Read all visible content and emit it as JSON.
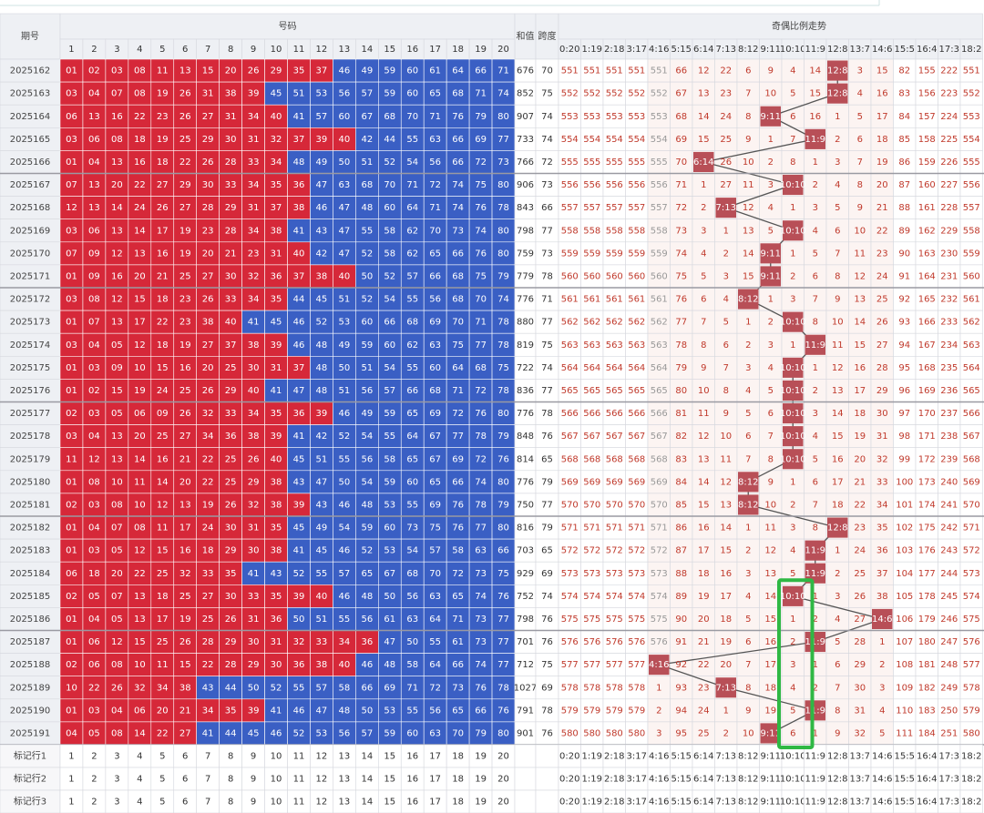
{
  "header": {
    "issue": "期号",
    "numbers": "号码",
    "sum": "和值",
    "span": "跨度",
    "trend": "奇偶比例走势",
    "number_cols": [
      1,
      2,
      3,
      4,
      5,
      6,
      7,
      8,
      9,
      10,
      11,
      12,
      13,
      14,
      15,
      16,
      17,
      18,
      19,
      20
    ],
    "ratio_cols": [
      "0:20",
      "1:19",
      "2:18",
      "3:17",
      "4:16",
      "5:15",
      "6:14",
      "7:13",
      "8:12",
      "9:11",
      "10:10",
      "11:9",
      "12:8",
      "13:7",
      "14:6",
      "15:5",
      "16:4",
      "17:3",
      "18:2"
    ]
  },
  "rows": [
    {
      "issue": "2025162",
      "numbers": [
        "01",
        "02",
        "03",
        "08",
        "11",
        "13",
        "15",
        "20",
        "26",
        "29",
        "35",
        "37",
        "46",
        "49",
        "59",
        "60",
        "61",
        "64",
        "66",
        "71"
      ],
      "sum": 676,
      "span": 70,
      "trend": [
        551,
        551,
        551,
        551,
        551,
        66,
        12,
        22,
        6,
        9,
        4,
        14,
        "12:8",
        3,
        15,
        82,
        155,
        222,
        551
      ]
    },
    {
      "issue": "2025163",
      "numbers": [
        "03",
        "04",
        "07",
        "08",
        "19",
        "26",
        "31",
        "38",
        "39",
        "45",
        "51",
        "53",
        "56",
        "57",
        "59",
        "60",
        "65",
        "68",
        "71",
        "74"
      ],
      "sum": 852,
      "span": 75,
      "trend": [
        552,
        552,
        552,
        552,
        552,
        67,
        13,
        23,
        7,
        10,
        5,
        15,
        "12:8",
        4,
        16,
        83,
        156,
        223,
        552
      ]
    },
    {
      "issue": "2025164",
      "numbers": [
        "06",
        "13",
        "16",
        "22",
        "23",
        "26",
        "27",
        "31",
        "34",
        "40",
        "41",
        "57",
        "60",
        "67",
        "68",
        "70",
        "71",
        "76",
        "79",
        "80"
      ],
      "sum": 907,
      "span": 74,
      "trend": [
        553,
        553,
        553,
        553,
        553,
        68,
        14,
        24,
        8,
        "9:11",
        6,
        16,
        1,
        5,
        17,
        84,
        157,
        224,
        553
      ]
    },
    {
      "issue": "2025165",
      "numbers": [
        "03",
        "06",
        "08",
        "18",
        "19",
        "25",
        "29",
        "30",
        "31",
        "32",
        "37",
        "39",
        "40",
        "42",
        "44",
        "55",
        "63",
        "66",
        "69",
        "77"
      ],
      "sum": 733,
      "span": 74,
      "trend": [
        554,
        554,
        554,
        554,
        554,
        69,
        15,
        25,
        9,
        1,
        7,
        "11:9",
        2,
        6,
        18,
        85,
        158,
        225,
        554
      ]
    },
    {
      "issue": "2025166",
      "numbers": [
        "01",
        "04",
        "13",
        "16",
        "18",
        "22",
        "26",
        "28",
        "33",
        "34",
        "48",
        "49",
        "50",
        "51",
        "52",
        "54",
        "56",
        "66",
        "72",
        "73"
      ],
      "sum": 766,
      "span": 72,
      "trend": [
        555,
        555,
        555,
        555,
        555,
        70,
        "6:14",
        26,
        10,
        2,
        8,
        1,
        3,
        7,
        19,
        86,
        159,
        226,
        555
      ]
    },
    {
      "issue": "2025167",
      "numbers": [
        "07",
        "13",
        "20",
        "22",
        "27",
        "29",
        "30",
        "33",
        "34",
        "35",
        "36",
        "47",
        "63",
        "68",
        "70",
        "71",
        "72",
        "74",
        "75",
        "80"
      ],
      "sum": 906,
      "span": 73,
      "trend": [
        556,
        556,
        556,
        556,
        556,
        71,
        1,
        27,
        11,
        3,
        "10:10",
        2,
        4,
        8,
        20,
        87,
        160,
        227,
        556
      ]
    },
    {
      "issue": "2025168",
      "numbers": [
        "12",
        "13",
        "14",
        "24",
        "26",
        "27",
        "28",
        "29",
        "31",
        "37",
        "38",
        "46",
        "47",
        "48",
        "60",
        "64",
        "71",
        "74",
        "76",
        "78"
      ],
      "sum": 843,
      "span": 66,
      "trend": [
        557,
        557,
        557,
        557,
        557,
        72,
        2,
        "7:13",
        12,
        4,
        1,
        3,
        5,
        9,
        21,
        88,
        161,
        228,
        557
      ]
    },
    {
      "issue": "2025169",
      "numbers": [
        "03",
        "06",
        "13",
        "14",
        "17",
        "19",
        "23",
        "28",
        "34",
        "38",
        "41",
        "43",
        "47",
        "55",
        "58",
        "62",
        "70",
        "73",
        "74",
        "80"
      ],
      "sum": 798,
      "span": 77,
      "trend": [
        558,
        558,
        558,
        558,
        558,
        73,
        3,
        1,
        13,
        5,
        "10:10",
        4,
        6,
        10,
        22,
        89,
        162,
        229,
        558
      ]
    },
    {
      "issue": "2025170",
      "numbers": [
        "07",
        "09",
        "12",
        "13",
        "16",
        "19",
        "20",
        "21",
        "23",
        "31",
        "40",
        "42",
        "47",
        "52",
        "58",
        "62",
        "65",
        "66",
        "76",
        "80"
      ],
      "sum": 759,
      "span": 73,
      "trend": [
        559,
        559,
        559,
        559,
        559,
        74,
        4,
        2,
        14,
        "9:11",
        1,
        5,
        7,
        11,
        23,
        90,
        163,
        230,
        559
      ]
    },
    {
      "issue": "2025171",
      "numbers": [
        "01",
        "09",
        "16",
        "20",
        "21",
        "25",
        "27",
        "30",
        "32",
        "36",
        "37",
        "38",
        "40",
        "50",
        "52",
        "57",
        "66",
        "68",
        "75",
        "79"
      ],
      "sum": 779,
      "span": 78,
      "trend": [
        560,
        560,
        560,
        560,
        560,
        75,
        5,
        3,
        15,
        "9:11",
        2,
        6,
        8,
        12,
        24,
        91,
        164,
        231,
        560
      ]
    },
    {
      "issue": "2025172",
      "numbers": [
        "03",
        "08",
        "12",
        "15",
        "18",
        "23",
        "26",
        "33",
        "34",
        "35",
        "44",
        "45",
        "51",
        "52",
        "54",
        "55",
        "56",
        "68",
        "70",
        "74"
      ],
      "sum": 776,
      "span": 71,
      "trend": [
        561,
        561,
        561,
        561,
        561,
        76,
        6,
        4,
        "8:12",
        1,
        3,
        7,
        9,
        13,
        25,
        92,
        165,
        232,
        561
      ]
    },
    {
      "issue": "2025173",
      "numbers": [
        "01",
        "07",
        "13",
        "17",
        "22",
        "23",
        "38",
        "40",
        "41",
        "45",
        "46",
        "52",
        "53",
        "60",
        "66",
        "68",
        "69",
        "70",
        "71",
        "78"
      ],
      "sum": 880,
      "span": 77,
      "trend": [
        562,
        562,
        562,
        562,
        562,
        77,
        7,
        5,
        1,
        2,
        "10:10",
        8,
        10,
        14,
        26,
        93,
        166,
        233,
        562
      ]
    },
    {
      "issue": "2025174",
      "numbers": [
        "03",
        "04",
        "05",
        "12",
        "18",
        "19",
        "27",
        "37",
        "38",
        "39",
        "46",
        "48",
        "49",
        "59",
        "60",
        "62",
        "63",
        "75",
        "77",
        "78"
      ],
      "sum": 819,
      "span": 75,
      "trend": [
        563,
        563,
        563,
        563,
        563,
        78,
        8,
        6,
        2,
        3,
        1,
        "11:9",
        11,
        15,
        27,
        94,
        167,
        234,
        563
      ]
    },
    {
      "issue": "2025175",
      "numbers": [
        "01",
        "03",
        "09",
        "10",
        "15",
        "16",
        "20",
        "25",
        "30",
        "31",
        "37",
        "48",
        "50",
        "51",
        "54",
        "55",
        "60",
        "64",
        "68",
        "75"
      ],
      "sum": 722,
      "span": 74,
      "trend": [
        564,
        564,
        564,
        564,
        564,
        79,
        9,
        7,
        3,
        4,
        "10:10",
        1,
        12,
        16,
        28,
        95,
        168,
        235,
        564
      ]
    },
    {
      "issue": "2025176",
      "numbers": [
        "01",
        "02",
        "15",
        "19",
        "24",
        "25",
        "26",
        "29",
        "40",
        "41",
        "47",
        "48",
        "51",
        "56",
        "57",
        "66",
        "68",
        "71",
        "72",
        "78"
      ],
      "sum": 836,
      "span": 77,
      "trend": [
        565,
        565,
        565,
        565,
        565,
        80,
        10,
        8,
        4,
        5,
        "10:10",
        2,
        13,
        17,
        29,
        96,
        169,
        236,
        565
      ]
    },
    {
      "issue": "2025177",
      "numbers": [
        "02",
        "03",
        "05",
        "06",
        "09",
        "26",
        "32",
        "33",
        "34",
        "35",
        "36",
        "39",
        "46",
        "49",
        "59",
        "65",
        "69",
        "72",
        "76",
        "80"
      ],
      "sum": 776,
      "span": 78,
      "trend": [
        566,
        566,
        566,
        566,
        566,
        81,
        11,
        9,
        5,
        6,
        "10:10",
        3,
        14,
        18,
        30,
        97,
        170,
        237,
        566
      ]
    },
    {
      "issue": "2025178",
      "numbers": [
        "03",
        "04",
        "13",
        "20",
        "25",
        "27",
        "34",
        "36",
        "38",
        "39",
        "41",
        "42",
        "52",
        "54",
        "55",
        "64",
        "67",
        "77",
        "78",
        "79"
      ],
      "sum": 848,
      "span": 76,
      "trend": [
        567,
        567,
        567,
        567,
        567,
        82,
        12,
        10,
        6,
        7,
        "10:10",
        4,
        15,
        19,
        31,
        98,
        171,
        238,
        567
      ]
    },
    {
      "issue": "2025179",
      "numbers": [
        "11",
        "12",
        "13",
        "14",
        "16",
        "21",
        "22",
        "25",
        "26",
        "40",
        "45",
        "51",
        "55",
        "56",
        "58",
        "65",
        "67",
        "69",
        "72",
        "76"
      ],
      "sum": 814,
      "span": 65,
      "trend": [
        568,
        568,
        568,
        568,
        568,
        83,
        13,
        11,
        7,
        8,
        "10:10",
        5,
        16,
        20,
        32,
        99,
        172,
        239,
        568
      ]
    },
    {
      "issue": "2025180",
      "numbers": [
        "01",
        "08",
        "10",
        "11",
        "14",
        "20",
        "22",
        "25",
        "29",
        "38",
        "43",
        "47",
        "50",
        "54",
        "59",
        "60",
        "65",
        "66",
        "74",
        "80"
      ],
      "sum": 776,
      "span": 79,
      "trend": [
        569,
        569,
        569,
        569,
        569,
        84,
        14,
        12,
        "8:12",
        9,
        1,
        6,
        17,
        21,
        33,
        100,
        173,
        240,
        569
      ]
    },
    {
      "issue": "2025181",
      "numbers": [
        "02",
        "03",
        "08",
        "10",
        "12",
        "13",
        "19",
        "26",
        "32",
        "38",
        "39",
        "43",
        "46",
        "48",
        "53",
        "55",
        "69",
        "76",
        "78",
        "79"
      ],
      "sum": 750,
      "span": 77,
      "trend": [
        570,
        570,
        570,
        570,
        570,
        85,
        15,
        13,
        "8:12",
        10,
        2,
        7,
        18,
        22,
        34,
        101,
        174,
        241,
        570
      ]
    },
    {
      "issue": "2025182",
      "numbers": [
        "01",
        "04",
        "07",
        "08",
        "11",
        "17",
        "24",
        "30",
        "31",
        "35",
        "45",
        "49",
        "54",
        "59",
        "60",
        "73",
        "75",
        "76",
        "77",
        "80"
      ],
      "sum": 816,
      "span": 79,
      "trend": [
        571,
        571,
        571,
        571,
        571,
        86,
        16,
        14,
        1,
        11,
        3,
        8,
        "12:8",
        23,
        35,
        102,
        175,
        242,
        571
      ]
    },
    {
      "issue": "2025183",
      "numbers": [
        "01",
        "03",
        "05",
        "12",
        "15",
        "16",
        "18",
        "29",
        "30",
        "38",
        "41",
        "45",
        "46",
        "52",
        "53",
        "54",
        "57",
        "58",
        "63",
        "66"
      ],
      "sum": 703,
      "span": 65,
      "trend": [
        572,
        572,
        572,
        572,
        572,
        87,
        17,
        15,
        2,
        12,
        4,
        "11:9",
        1,
        24,
        36,
        103,
        176,
        243,
        572
      ]
    },
    {
      "issue": "2025184",
      "numbers": [
        "06",
        "18",
        "20",
        "22",
        "25",
        "32",
        "33",
        "35",
        "41",
        "43",
        "52",
        "55",
        "57",
        "65",
        "67",
        "68",
        "70",
        "72",
        "73",
        "75"
      ],
      "sum": 929,
      "span": 69,
      "trend": [
        573,
        573,
        573,
        573,
        573,
        88,
        18,
        16,
        3,
        13,
        5,
        "11:9",
        2,
        25,
        37,
        104,
        177,
        244,
        573
      ]
    },
    {
      "issue": "2025185",
      "numbers": [
        "02",
        "05",
        "07",
        "13",
        "18",
        "25",
        "27",
        "30",
        "33",
        "35",
        "39",
        "40",
        "46",
        "48",
        "50",
        "56",
        "63",
        "65",
        "74",
        "76"
      ],
      "sum": 752,
      "span": 74,
      "trend": [
        574,
        574,
        574,
        574,
        574,
        89,
        19,
        17,
        4,
        14,
        "10:10",
        1,
        3,
        26,
        38,
        105,
        178,
        245,
        574
      ]
    },
    {
      "issue": "2025186",
      "numbers": [
        "01",
        "04",
        "05",
        "13",
        "17",
        "19",
        "25",
        "26",
        "31",
        "36",
        "50",
        "51",
        "55",
        "56",
        "61",
        "63",
        "64",
        "71",
        "73",
        "77"
      ],
      "sum": 798,
      "span": 76,
      "trend": [
        575,
        575,
        575,
        575,
        575,
        90,
        20,
        18,
        5,
        15,
        1,
        2,
        4,
        27,
        "14:6",
        106,
        179,
        246,
        575
      ]
    },
    {
      "issue": "2025187",
      "numbers": [
        "01",
        "06",
        "12",
        "15",
        "25",
        "26",
        "28",
        "29",
        "30",
        "31",
        "32",
        "33",
        "34",
        "36",
        "47",
        "50",
        "55",
        "61",
        "73",
        "77"
      ],
      "sum": 701,
      "span": 76,
      "trend": [
        576,
        576,
        576,
        576,
        576,
        91,
        21,
        19,
        6,
        16,
        2,
        "11:9",
        5,
        28,
        1,
        107,
        180,
        247,
        576
      ]
    },
    {
      "issue": "2025188",
      "numbers": [
        "02",
        "06",
        "08",
        "10",
        "11",
        "15",
        "22",
        "28",
        "29",
        "30",
        "36",
        "38",
        "40",
        "46",
        "48",
        "58",
        "64",
        "66",
        "74",
        "77"
      ],
      "sum": 712,
      "span": 75,
      "trend": [
        577,
        577,
        577,
        577,
        "4:16",
        92,
        22,
        20,
        7,
        17,
        3,
        1,
        6,
        29,
        2,
        108,
        181,
        248,
        577
      ]
    },
    {
      "issue": "2025189",
      "numbers": [
        "10",
        "22",
        "26",
        "32",
        "34",
        "38",
        "43",
        "44",
        "50",
        "52",
        "55",
        "57",
        "58",
        "66",
        "69",
        "71",
        "72",
        "73",
        "76",
        "78"
      ],
      "sum": 1027,
      "span": 69,
      "trend": [
        578,
        578,
        578,
        578,
        1,
        93,
        23,
        "7:13",
        8,
        18,
        4,
        2,
        7,
        30,
        3,
        109,
        182,
        249,
        578
      ]
    },
    {
      "issue": "2025190",
      "numbers": [
        "01",
        "03",
        "04",
        "06",
        "20",
        "21",
        "34",
        "35",
        "39",
        "41",
        "46",
        "47",
        "48",
        "50",
        "53",
        "55",
        "56",
        "65",
        "66",
        "76"
      ],
      "sum": 791,
      "span": 78,
      "trend": [
        579,
        579,
        579,
        579,
        2,
        94,
        24,
        1,
        9,
        19,
        5,
        "11:9",
        8,
        31,
        4,
        110,
        183,
        250,
        579
      ]
    },
    {
      "issue": "2025191",
      "numbers": [
        "04",
        "05",
        "08",
        "14",
        "22",
        "27",
        "41",
        "44",
        "45",
        "46",
        "52",
        "53",
        "56",
        "57",
        "59",
        "60",
        "63",
        "70",
        "79",
        "80"
      ],
      "sum": 901,
      "span": 76,
      "trend": [
        580,
        580,
        580,
        580,
        3,
        95,
        25,
        2,
        10,
        "9:11",
        6,
        1,
        9,
        32,
        5,
        111,
        184,
        251,
        580
      ]
    }
  ],
  "marker_rows": [
    "标记行1",
    "标记行2",
    "标记行3"
  ]
}
